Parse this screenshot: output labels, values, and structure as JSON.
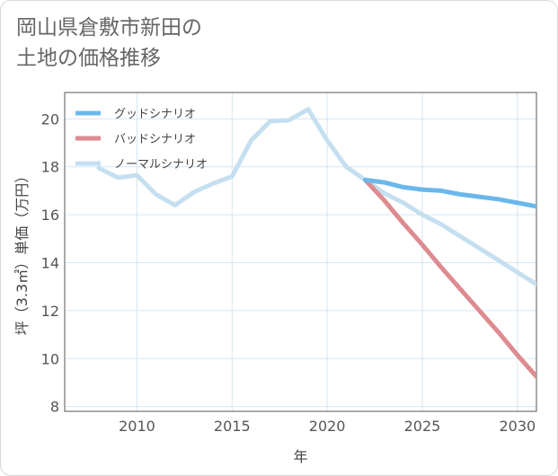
{
  "title_lines": [
    "岡山県倉敷市新田の",
    "土地の価格推移"
  ],
  "chart_data": {
    "type": "line",
    "title": "岡山県倉敷市新田の土地の価格推移",
    "xlabel": "年",
    "ylabel": "坪（3.3㎡）単価（万円）",
    "xlim": [
      2006.2,
      2031
    ],
    "ylim": [
      7.8,
      21.1
    ],
    "xticks": [
      2010,
      2015,
      2020,
      2025,
      2030
    ],
    "yticks": [
      8,
      10,
      12,
      14,
      16,
      18,
      20
    ],
    "grid": true,
    "legend_position": "top-left",
    "series": [
      {
        "name": "グッドシナリオ",
        "color": "#6ab8ea",
        "x": [
          2022,
          2023,
          2024,
          2025,
          2026,
          2027,
          2028,
          2029,
          2030,
          2031
        ],
        "y": [
          17.45,
          17.35,
          17.15,
          17.05,
          17.0,
          16.85,
          16.75,
          16.65,
          16.5,
          16.35
        ]
      },
      {
        "name": "バッドシナリオ",
        "color": "#dd8b91",
        "x": [
          2022,
          2023,
          2024,
          2025,
          2026,
          2027,
          2028,
          2029,
          2030,
          2031
        ],
        "y": [
          17.45,
          16.6,
          15.65,
          14.75,
          13.8,
          12.9,
          12.0,
          11.1,
          10.15,
          9.25
        ]
      },
      {
        "name": "ノーマルシナリオ",
        "color": "#c5dff0",
        "x": [
          2008,
          2009,
          2010,
          2011,
          2012,
          2013,
          2014,
          2015,
          2016,
          2017,
          2018,
          2019,
          2020,
          2021,
          2022,
          2023,
          2024,
          2025,
          2026,
          2027,
          2028,
          2029,
          2030,
          2031
        ],
        "y": [
          17.95,
          17.55,
          17.65,
          16.85,
          16.4,
          16.95,
          17.3,
          17.6,
          19.1,
          19.9,
          19.95,
          20.4,
          19.1,
          18.0,
          17.45,
          16.9,
          16.5,
          16.0,
          15.6,
          15.1,
          14.6,
          14.1,
          13.6,
          13.1
        ]
      }
    ]
  }
}
